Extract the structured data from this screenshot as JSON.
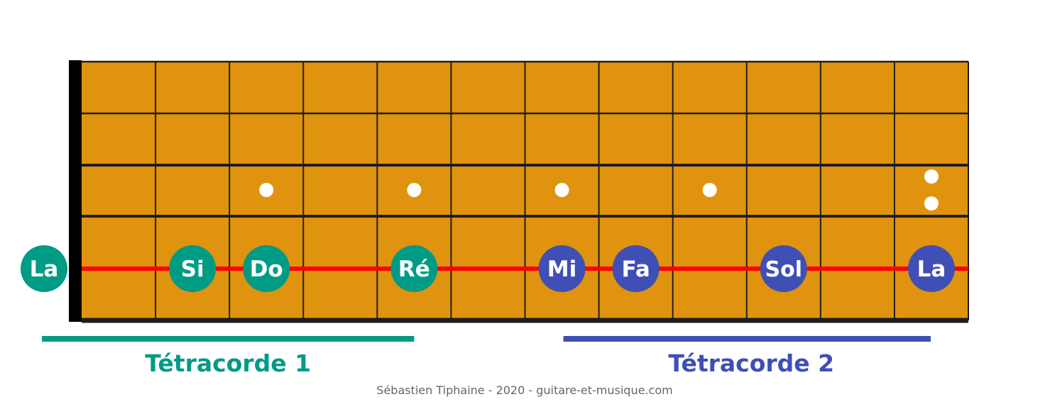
{
  "colors": {
    "wood": "#e0930f",
    "fret_line": "#1e1e1e",
    "nut": "#000000",
    "string": "#ff0000",
    "inlay": "#ffffff",
    "group1": "#009b84",
    "group2": "#3f4fb5",
    "credit": "#666666"
  },
  "notes": [
    {
      "label": "La",
      "fret": 0,
      "group": 1
    },
    {
      "label": "Si",
      "fret": 2,
      "group": 1
    },
    {
      "label": "Do",
      "fret": 3,
      "group": 1
    },
    {
      "label": "Ré",
      "fret": 5,
      "group": 1
    },
    {
      "label": "Mi",
      "fret": 7,
      "group": 2
    },
    {
      "label": "Fa",
      "fret": 8,
      "group": 2
    },
    {
      "label": "Sol",
      "fret": 10,
      "group": 2
    },
    {
      "label": "La",
      "fret": 12,
      "group": 2
    }
  ],
  "inlays": {
    "single_frets": [
      3,
      5,
      7,
      9
    ],
    "double_frets": [
      12
    ]
  },
  "tetracordes": {
    "first": {
      "label": "Tétracorde 1",
      "from_fret": 0,
      "to_fret": 5
    },
    "second": {
      "label": "Tétracorde 2",
      "from_fret": 7,
      "to_fret": 12
    }
  },
  "credit": "Sébastien Tiphaine - 2020 - guitare-et-musique.com"
}
